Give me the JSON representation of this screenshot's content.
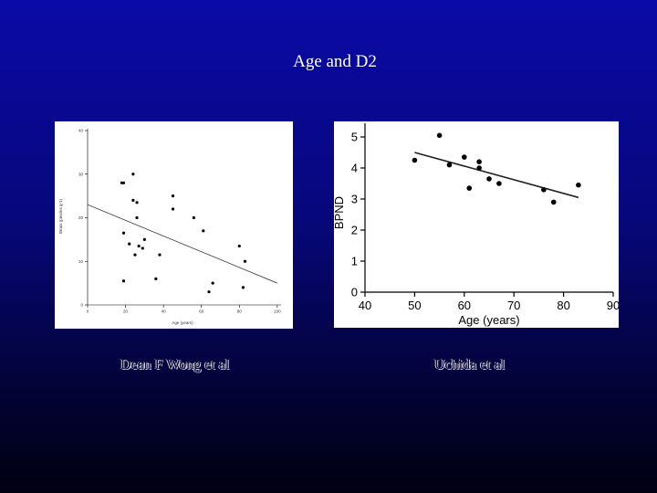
{
  "slide": {
    "title": "Age and D2",
    "caption_left": "Dean F Wong et al",
    "caption_right": "Uchida et al",
    "background": "#0a0aa8"
  },
  "chart_data": [
    {
      "type": "scatter",
      "title": "",
      "xlabel": "Age (years)",
      "ylabel": "Bmax (pmoles g-1)",
      "xlim": [
        0,
        102
      ],
      "ylim": [
        0,
        40
      ],
      "xticks": [
        "0",
        "20",
        "40",
        "60",
        "80",
        "100"
      ],
      "yticks": [
        "0",
        "10",
        "20",
        "30",
        "40"
      ],
      "points": [
        {
          "x": 18,
          "y": 28
        },
        {
          "x": 19,
          "y": 28
        },
        {
          "x": 24,
          "y": 30
        },
        {
          "x": 24,
          "y": 24
        },
        {
          "x": 26,
          "y": 23.5
        },
        {
          "x": 26,
          "y": 20
        },
        {
          "x": 19,
          "y": 16.5
        },
        {
          "x": 22,
          "y": 14
        },
        {
          "x": 27,
          "y": 13.5
        },
        {
          "x": 29,
          "y": 13
        },
        {
          "x": 30,
          "y": 15
        },
        {
          "x": 25,
          "y": 11.5
        },
        {
          "x": 19,
          "y": 5.5
        },
        {
          "x": 36,
          "y": 6
        },
        {
          "x": 38,
          "y": 11.5
        },
        {
          "x": 45,
          "y": 25
        },
        {
          "x": 45,
          "y": 22
        },
        {
          "x": 56,
          "y": 20
        },
        {
          "x": 61,
          "y": 17
        },
        {
          "x": 64,
          "y": 3
        },
        {
          "x": 66,
          "y": 5
        },
        {
          "x": 80,
          "y": 13.5
        },
        {
          "x": 83,
          "y": 10
        },
        {
          "x": 82,
          "y": 4
        }
      ],
      "trendline": [
        {
          "x": 0,
          "y": 23
        },
        {
          "x": 100,
          "y": 5
        }
      ]
    },
    {
      "type": "scatter",
      "title": "",
      "xlabel": "Age (years)",
      "ylabel": "BPND",
      "xlim": [
        40,
        90
      ],
      "ylim": [
        0,
        5.5
      ],
      "xticks": [
        "40",
        "50",
        "60",
        "70",
        "80",
        "90"
      ],
      "yticks": [
        "0",
        "1",
        "2",
        "3",
        "4",
        "5"
      ],
      "points": [
        {
          "x": 50,
          "y": 4.25
        },
        {
          "x": 55,
          "y": 5.05
        },
        {
          "x": 57,
          "y": 4.1
        },
        {
          "x": 60,
          "y": 4.35
        },
        {
          "x": 61,
          "y": 3.35
        },
        {
          "x": 63,
          "y": 4.2
        },
        {
          "x": 63,
          "y": 4.0
        },
        {
          "x": 65,
          "y": 3.65
        },
        {
          "x": 67,
          "y": 3.5
        },
        {
          "x": 76,
          "y": 3.3
        },
        {
          "x": 78,
          "y": 2.9
        },
        {
          "x": 83,
          "y": 3.45
        }
      ],
      "trendline": [
        {
          "x": 50,
          "y": 4.5
        },
        {
          "x": 83,
          "y": 3.05
        }
      ]
    }
  ]
}
